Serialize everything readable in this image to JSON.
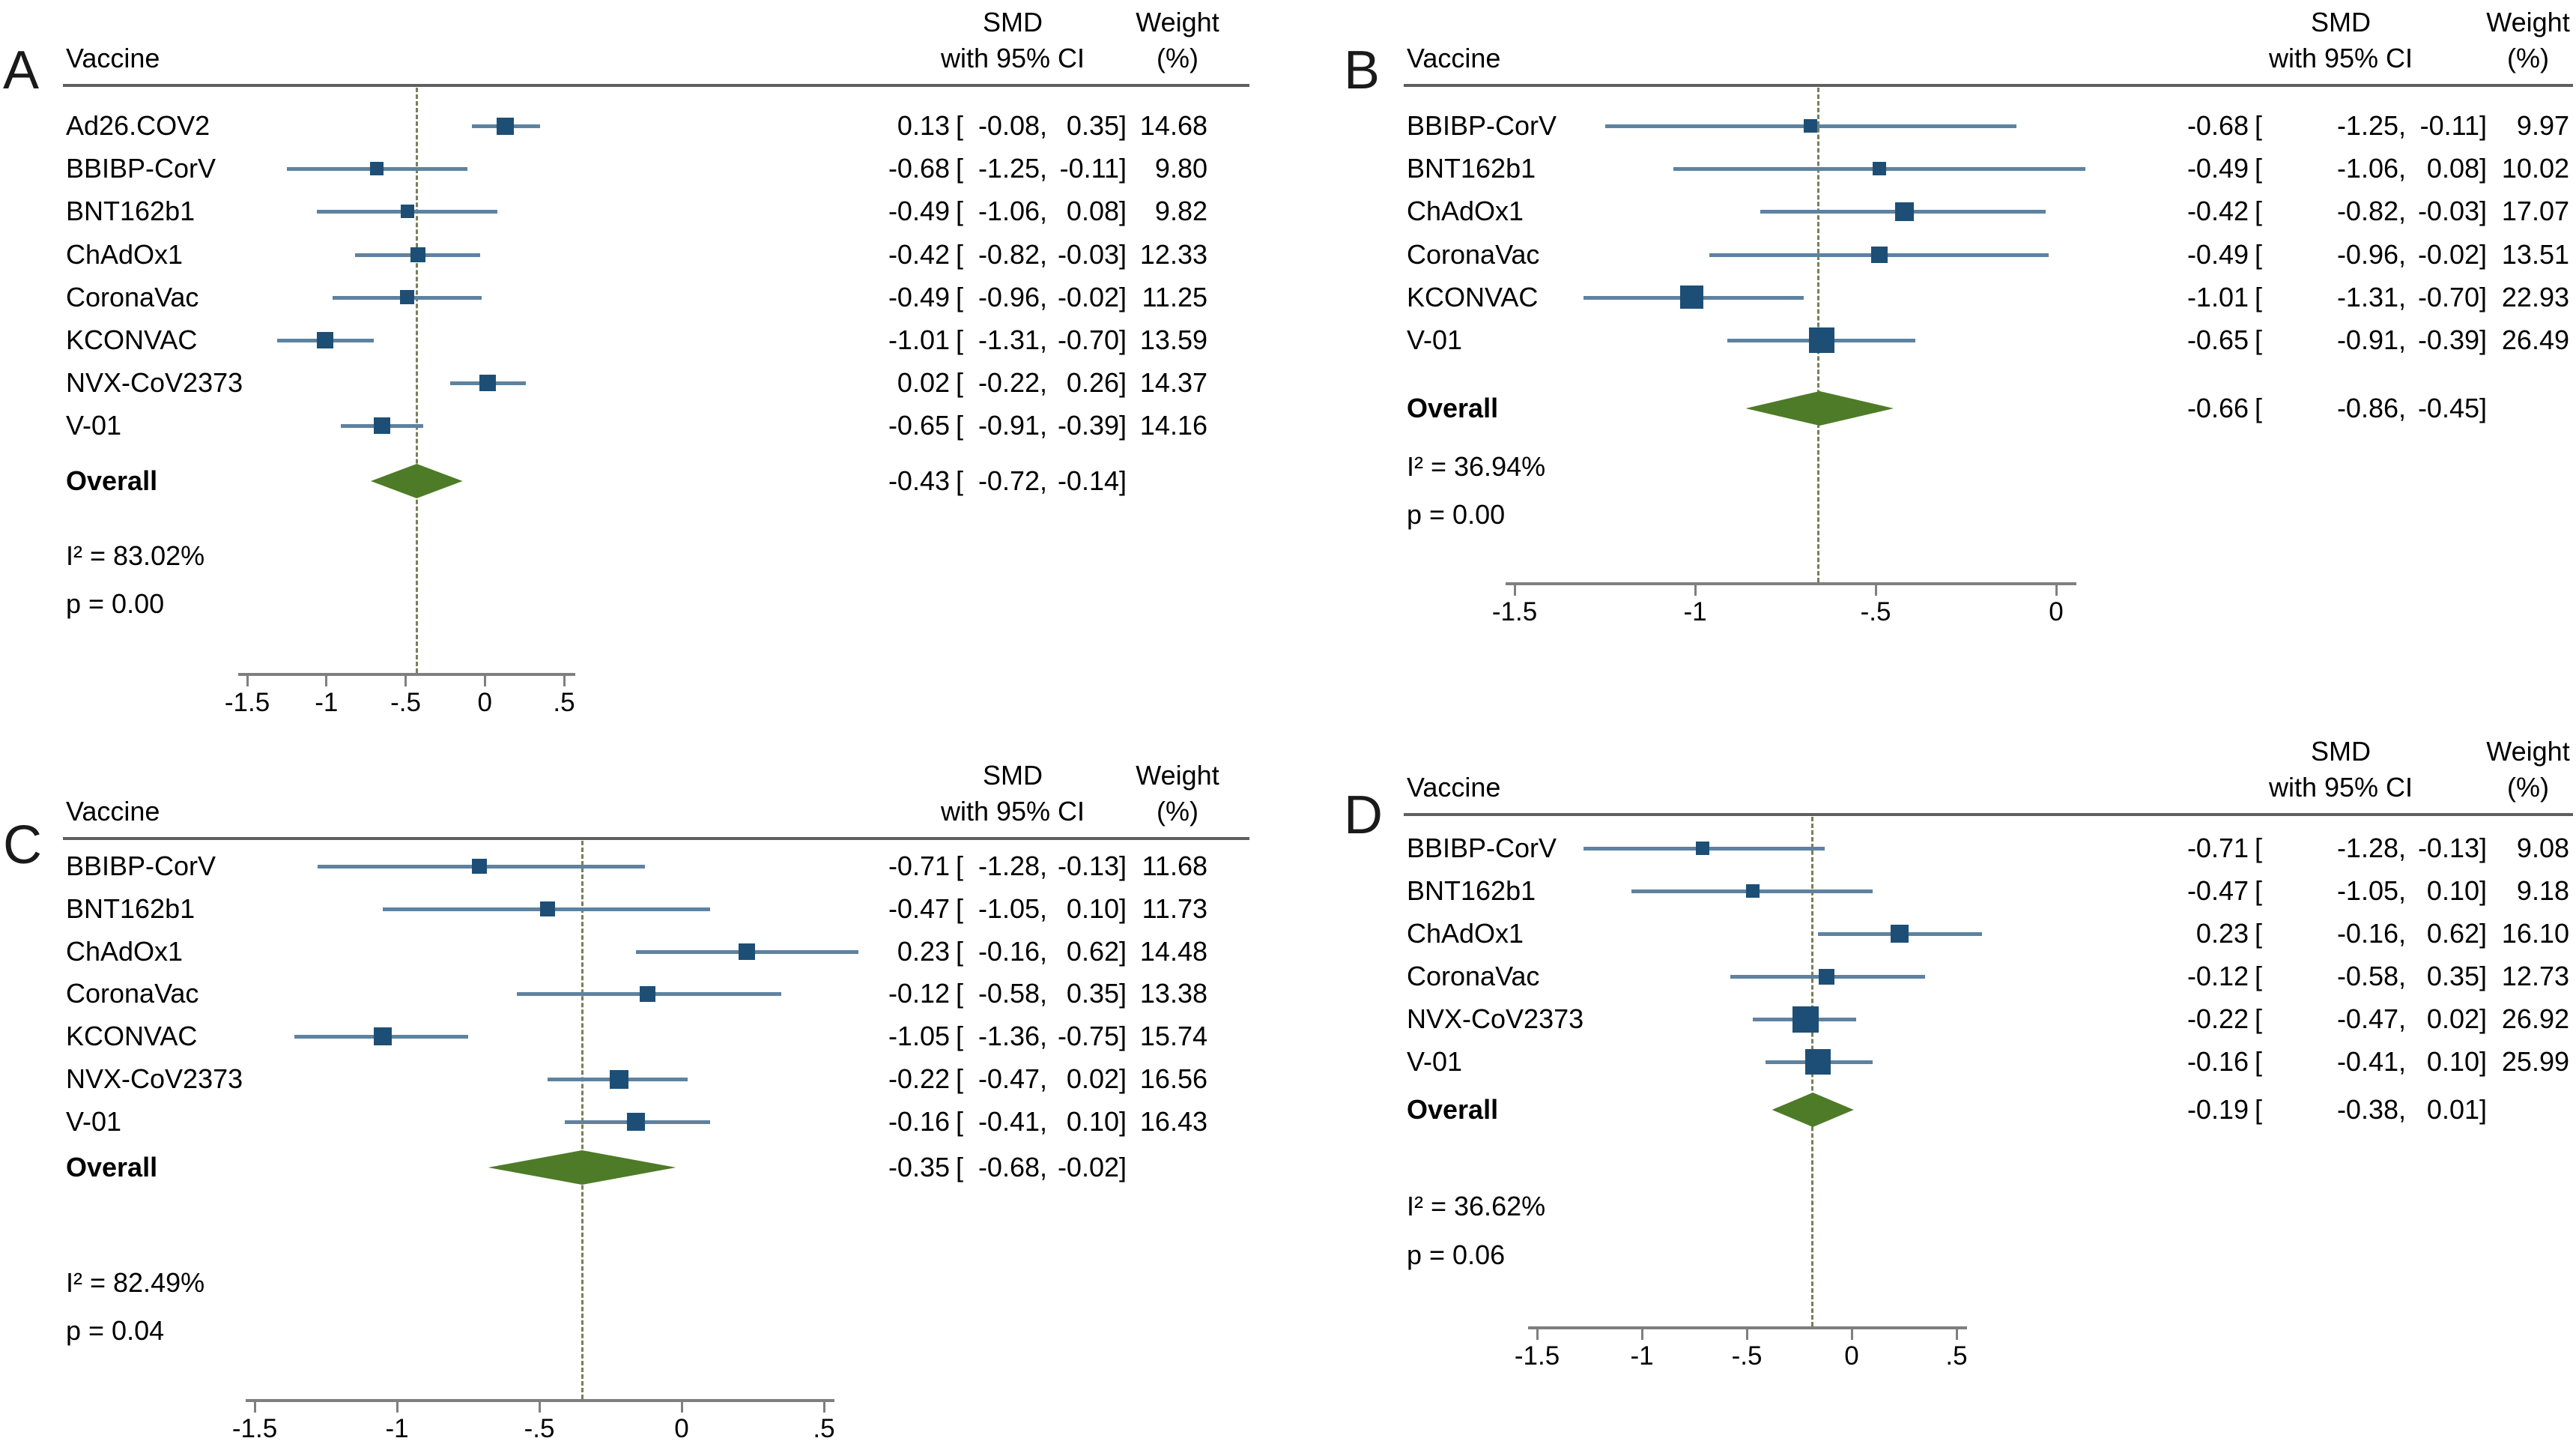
{
  "colors": {
    "ci_line": "#5e82a0",
    "marker": "#1d4f76",
    "diamond": "#4e7b28",
    "reference_line": "#75805a",
    "axis": "#7f7f7f",
    "header_rule": "#5f5f5f",
    "text": "#000000"
  },
  "chart_data": [
    {
      "type": "forest",
      "panel_letter": "A",
      "columns": {
        "vaccine": "Vaccine",
        "smd_line1": "SMD",
        "smd_line2": "with 95% CI",
        "weight_line1": "Weight",
        "weight_line2": "(%)"
      },
      "rows": [
        {
          "vaccine": "Ad26.COV2",
          "smd": "0.13",
          "ci_low": "-0.08",
          "ci_high": "0.35",
          "weight": "14.68"
        },
        {
          "vaccine": "BBIBP-CorV",
          "smd": "-0.68",
          "ci_low": "-1.25",
          "ci_high": "-0.11",
          "weight": "9.80"
        },
        {
          "vaccine": "BNT162b1",
          "smd": "-0.49",
          "ci_low": "-1.06",
          "ci_high": "0.08",
          "weight": "9.82"
        },
        {
          "vaccine": "ChAdOx1",
          "smd": "-0.42",
          "ci_low": "-0.82",
          "ci_high": "-0.03",
          "weight": "12.33"
        },
        {
          "vaccine": "CoronaVac",
          "smd": "-0.49",
          "ci_low": "-0.96",
          "ci_high": "-0.02",
          "weight": "11.25"
        },
        {
          "vaccine": "KCONVAC",
          "smd": "-1.01",
          "ci_low": "-1.31",
          "ci_high": "-0.70",
          "weight": "13.59"
        },
        {
          "vaccine": "NVX-CoV2373",
          "smd": "0.02",
          "ci_low": "-0.22",
          "ci_high": "0.26",
          "weight": "14.37"
        },
        {
          "vaccine": "V-01",
          "smd": "-0.65",
          "ci_low": "-0.91",
          "ci_high": "-0.39",
          "weight": "14.16"
        }
      ],
      "overall": {
        "label": "Overall",
        "smd": "-0.43",
        "ci_low": "-0.72",
        "ci_high": "-0.14"
      },
      "heterogeneity": "I² = 83.02%",
      "p_value": "p = 0.00",
      "x_ticks": [
        "-1.5",
        "-1",
        "-.5",
        "0",
        ".5"
      ],
      "axis_range": [
        -1.5,
        0.5
      ]
    },
    {
      "type": "forest",
      "panel_letter": "B",
      "columns": {
        "vaccine": "Vaccine",
        "smd_line1": "SMD",
        "smd_line2": "with 95% CI",
        "weight_line1": "Weight",
        "weight_line2": "(%)"
      },
      "rows": [
        {
          "vaccine": "BBIBP-CorV",
          "smd": "-0.68",
          "ci_low": "-1.25",
          "ci_high": "-0.11",
          "weight": "9.97"
        },
        {
          "vaccine": "BNT162b1",
          "smd": "-0.49",
          "ci_low": "-1.06",
          "ci_high": "0.08",
          "weight": "10.02"
        },
        {
          "vaccine": "ChAdOx1",
          "smd": "-0.42",
          "ci_low": "-0.82",
          "ci_high": "-0.03",
          "weight": "17.07"
        },
        {
          "vaccine": "CoronaVac",
          "smd": "-0.49",
          "ci_low": "-0.96",
          "ci_high": "-0.02",
          "weight": "13.51"
        },
        {
          "vaccine": "KCONVAC",
          "smd": "-1.01",
          "ci_low": "-1.31",
          "ci_high": "-0.70",
          "weight": "22.93"
        },
        {
          "vaccine": "V-01",
          "smd": "-0.65",
          "ci_low": "-0.91",
          "ci_high": "-0.39",
          "weight": "26.49"
        }
      ],
      "overall": {
        "label": "Overall",
        "smd": "-0.66",
        "ci_low": "-0.86",
        "ci_high": "-0.45"
      },
      "heterogeneity": "I² = 36.94%",
      "p_value": "p = 0.00",
      "x_ticks": [
        "-1.5",
        "-1",
        "-.5",
        "0"
      ],
      "axis_range": [
        -1.5,
        0
      ]
    },
    {
      "type": "forest",
      "panel_letter": "C",
      "columns": {
        "vaccine": "Vaccine",
        "smd_line1": "SMD",
        "smd_line2": "with 95% CI",
        "weight_line1": "Weight",
        "weight_line2": "(%)"
      },
      "rows": [
        {
          "vaccine": "BBIBP-CorV",
          "smd": "-0.71",
          "ci_low": "-1.28",
          "ci_high": "-0.13",
          "weight": "11.68"
        },
        {
          "vaccine": "BNT162b1",
          "smd": "-0.47",
          "ci_low": "-1.05",
          "ci_high": "0.10",
          "weight": "11.73"
        },
        {
          "vaccine": "ChAdOx1",
          "smd": "0.23",
          "ci_low": "-0.16",
          "ci_high": "0.62",
          "weight": "14.48"
        },
        {
          "vaccine": "CoronaVac",
          "smd": "-0.12",
          "ci_low": "-0.58",
          "ci_high": "0.35",
          "weight": "13.38"
        },
        {
          "vaccine": "KCONVAC",
          "smd": "-1.05",
          "ci_low": "-1.36",
          "ci_high": "-0.75",
          "weight": "15.74"
        },
        {
          "vaccine": "NVX-CoV2373",
          "smd": "-0.22",
          "ci_low": "-0.47",
          "ci_high": "0.02",
          "weight": "16.56"
        },
        {
          "vaccine": "V-01",
          "smd": "-0.16",
          "ci_low": "-0.41",
          "ci_high": "0.10",
          "weight": "16.43"
        }
      ],
      "overall": {
        "label": "Overall",
        "smd": "-0.35",
        "ci_low": "-0.68",
        "ci_high": "-0.02"
      },
      "heterogeneity": "I² = 82.49%",
      "p_value": "p = 0.04",
      "x_ticks": [
        "-1.5",
        "-1",
        "-.5",
        "0",
        ".5"
      ],
      "axis_range": [
        -1.5,
        0.5
      ]
    },
    {
      "type": "forest",
      "panel_letter": "D",
      "columns": {
        "vaccine": "Vaccine",
        "smd_line1": "SMD",
        "smd_line2": "with 95% CI",
        "weight_line1": "Weight",
        "weight_line2": "(%)"
      },
      "rows": [
        {
          "vaccine": "BBIBP-CorV",
          "smd": "-0.71",
          "ci_low": "-1.28",
          "ci_high": "-0.13",
          "weight": "9.08"
        },
        {
          "vaccine": "BNT162b1",
          "smd": "-0.47",
          "ci_low": "-1.05",
          "ci_high": "0.10",
          "weight": "9.18"
        },
        {
          "vaccine": "ChAdOx1",
          "smd": "0.23",
          "ci_low": "-0.16",
          "ci_high": "0.62",
          "weight": "16.10"
        },
        {
          "vaccine": "CoronaVac",
          "smd": "-0.12",
          "ci_low": "-0.58",
          "ci_high": "0.35",
          "weight": "12.73"
        },
        {
          "vaccine": "NVX-CoV2373",
          "smd": "-0.22",
          "ci_low": "-0.47",
          "ci_high": "0.02",
          "weight": "26.92"
        },
        {
          "vaccine": "V-01",
          "smd": "-0.16",
          "ci_low": "-0.41",
          "ci_high": "0.10",
          "weight": "25.99"
        }
      ],
      "overall": {
        "label": "Overall",
        "smd": "-0.19",
        "ci_low": "-0.38",
        "ci_high": "0.01"
      },
      "heterogeneity": "I² = 36.62%",
      "p_value": "p = 0.06",
      "x_ticks": [
        "-1.5",
        "-1",
        "-.5",
        "0",
        ".5"
      ],
      "axis_range": [
        -1.5,
        0.5
      ]
    }
  ]
}
